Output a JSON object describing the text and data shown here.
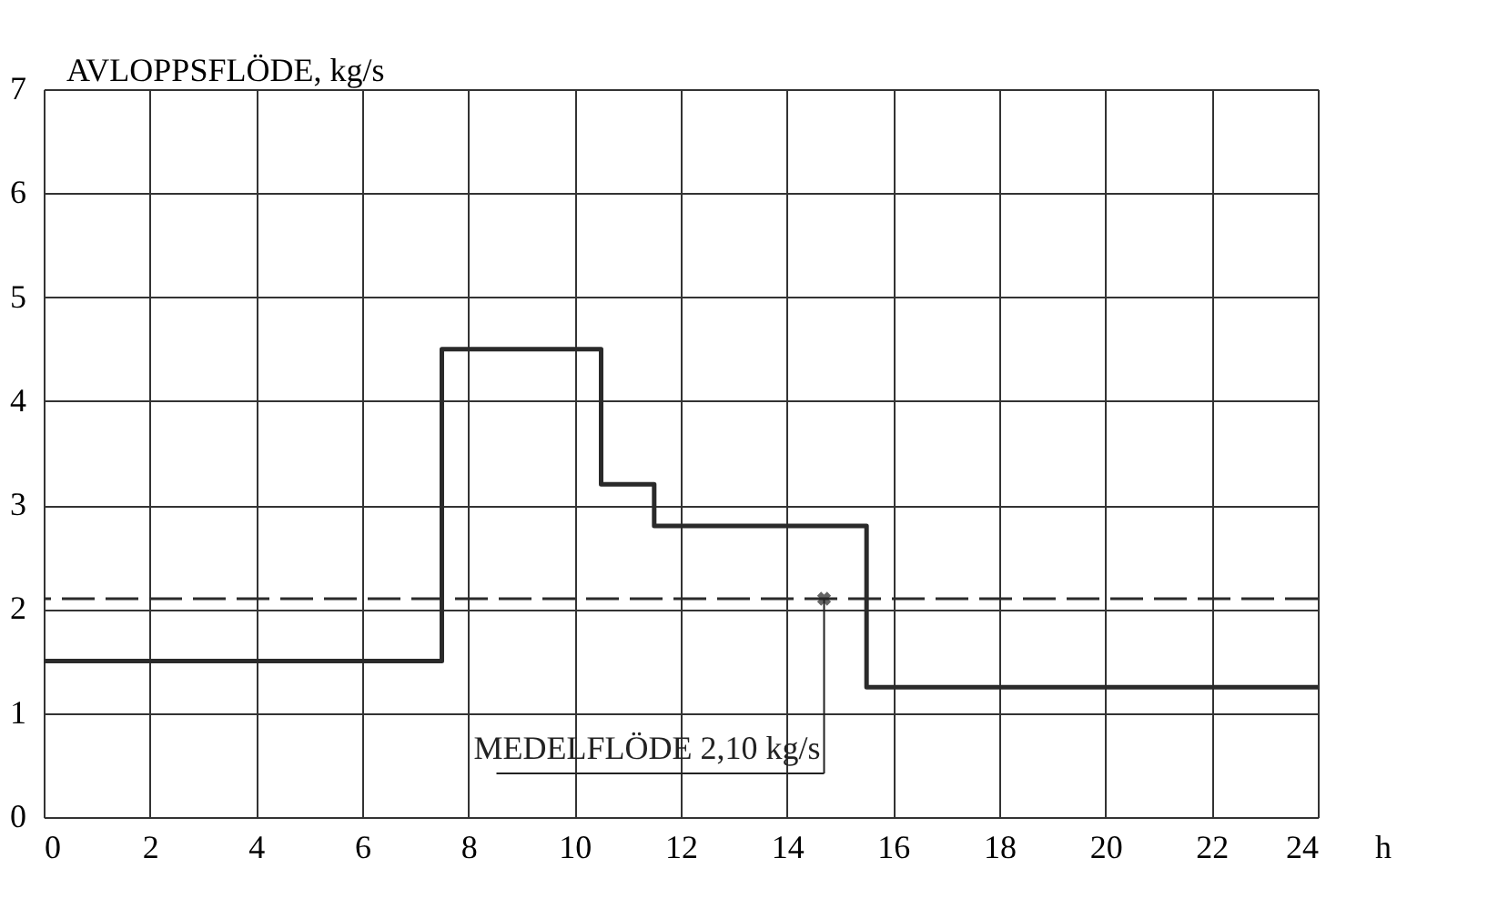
{
  "chart_data": {
    "type": "step",
    "ylabel": "AVLOPPSFLÖDE, kg/s",
    "xlabel": "h",
    "x": [
      0,
      7.5,
      10.5,
      11.5,
      15.5,
      24
    ],
    "series": [
      {
        "color": "#2a2a2a",
        "values": [
          1.5,
          4.5,
          3.2,
          2.8,
          1.25,
          1.25
        ]
      }
    ],
    "xlim": [
      0,
      24
    ],
    "xticks": [
      0,
      2,
      4,
      6,
      8,
      10,
      12,
      14,
      16,
      18,
      20,
      22,
      24
    ],
    "ylim": [
      0,
      7
    ],
    "yticks": [
      0,
      1,
      2,
      3,
      4,
      5,
      6,
      7
    ],
    "grid": true,
    "line_style": "solid",
    "ref_lines": [
      {
        "axis": "y",
        "value": 2.1,
        "line_style": "dashed",
        "color": "#2a2a2a"
      }
    ],
    "annotations": [
      {
        "text": "MEDELFLÖDE 2,10 kg/s",
        "x": 14.7,
        "y": 2.1
      }
    ]
  }
}
